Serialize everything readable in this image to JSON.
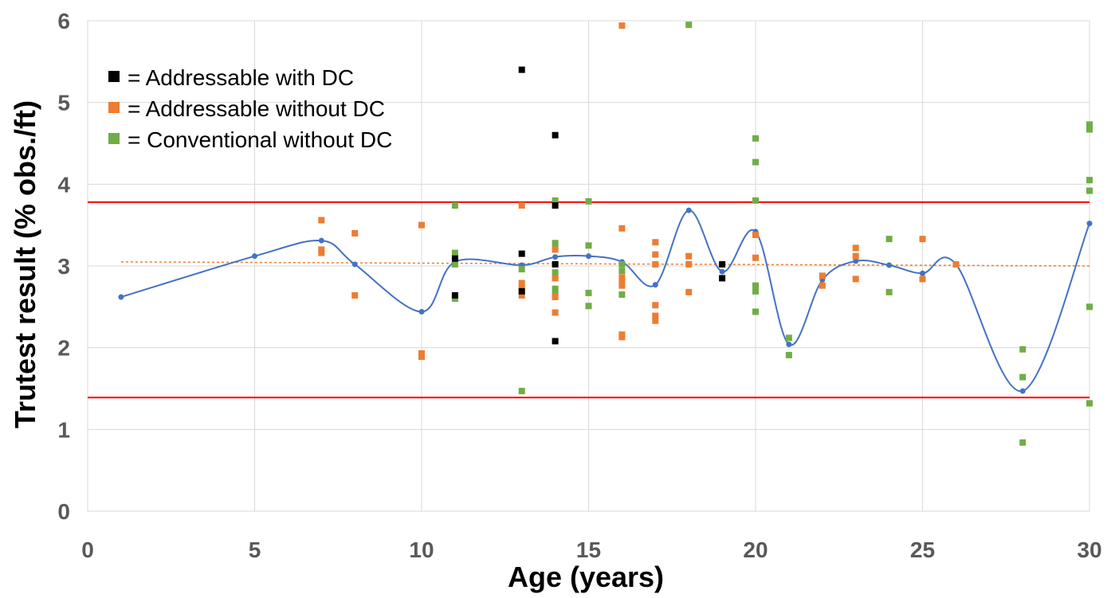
{
  "chart_data": {
    "type": "scatter",
    "title": "",
    "xlabel": "Age (years)",
    "ylabel": "Trutest result (% obs./ft)",
    "xlim": [
      0,
      30
    ],
    "ylim": [
      0,
      6
    ],
    "x_ticks": [
      0,
      5,
      10,
      15,
      20,
      25,
      30
    ],
    "y_ticks": [
      0,
      1,
      2,
      3,
      4,
      5,
      6
    ],
    "grid": true,
    "legend_position": "top-left",
    "legend": [
      {
        "series": "addressable_with_dc",
        "label": "= Addressable  with DC",
        "color": "#000000"
      },
      {
        "series": "addressable_without_dc",
        "label": "= Addressable  without DC",
        "color": "#ED7D31"
      },
      {
        "series": "conventional_without_dc",
        "label": "= Conventional  without DC",
        "color": "#70AD47"
      }
    ],
    "series": [
      {
        "key": "addressable_with_dc",
        "name": "Addressable with DC",
        "color": "#000000",
        "marker": "square",
        "points": [
          [
            11,
            3.09
          ],
          [
            11,
            2.64
          ],
          [
            13,
            5.4
          ],
          [
            13,
            3.15
          ],
          [
            13,
            2.69
          ],
          [
            14,
            4.6
          ],
          [
            14,
            3.74
          ],
          [
            14,
            3.02
          ],
          [
            14,
            2.08
          ],
          [
            19,
            3.02
          ],
          [
            19,
            2.85
          ]
        ]
      },
      {
        "key": "addressable_without_dc",
        "name": "Addressable without DC",
        "color": "#ED7D31",
        "marker": "square",
        "points": [
          [
            7,
            3.56
          ],
          [
            7,
            3.2
          ],
          [
            7,
            3.16
          ],
          [
            8,
            3.4
          ],
          [
            8,
            2.64
          ],
          [
            10,
            3.5
          ],
          [
            10,
            1.93
          ],
          [
            10,
            1.89
          ],
          [
            13,
            3.74
          ],
          [
            13,
            2.79
          ],
          [
            13,
            2.72
          ],
          [
            13,
            2.64
          ],
          [
            14,
            3.2
          ],
          [
            14,
            2.85
          ],
          [
            14,
            2.62
          ],
          [
            14,
            2.43
          ],
          [
            16,
            5.94
          ],
          [
            16,
            3.46
          ],
          [
            16,
            2.86
          ],
          [
            16,
            2.8
          ],
          [
            16,
            2.76
          ],
          [
            16,
            2.16
          ],
          [
            16,
            2.13
          ],
          [
            17,
            3.29
          ],
          [
            17,
            3.14
          ],
          [
            17,
            3.02
          ],
          [
            17,
            2.52
          ],
          [
            17,
            2.39
          ],
          [
            17,
            2.33
          ],
          [
            18,
            3.12
          ],
          [
            18,
            3.02
          ],
          [
            18,
            2.68
          ],
          [
            20,
            3.38
          ],
          [
            20,
            3.1
          ],
          [
            22,
            2.88
          ],
          [
            22,
            2.76
          ],
          [
            23,
            3.22
          ],
          [
            23,
            3.12
          ],
          [
            23,
            2.84
          ],
          [
            25,
            3.33
          ],
          [
            25,
            2.84
          ],
          [
            26,
            3.02
          ]
        ]
      },
      {
        "key": "conventional_without_dc",
        "name": "Conventional without DC",
        "color": "#70AD47",
        "marker": "square",
        "points": [
          [
            11,
            3.74
          ],
          [
            11,
            3.16
          ],
          [
            11,
            3.02
          ],
          [
            11,
            2.6
          ],
          [
            13,
            2.96
          ],
          [
            13,
            1.47
          ],
          [
            14,
            3.8
          ],
          [
            14,
            3.28
          ],
          [
            14,
            3.22
          ],
          [
            14,
            2.92
          ],
          [
            14,
            2.87
          ],
          [
            14,
            2.72
          ],
          [
            14,
            2.68
          ],
          [
            15,
            3.79
          ],
          [
            15,
            3.25
          ],
          [
            15,
            2.67
          ],
          [
            15,
            2.51
          ],
          [
            16,
            3.02
          ],
          [
            16,
            2.94
          ],
          [
            16,
            2.65
          ],
          [
            18,
            5.95
          ],
          [
            20,
            4.56
          ],
          [
            20,
            4.27
          ],
          [
            20,
            3.8
          ],
          [
            20,
            2.76
          ],
          [
            20,
            2.72
          ],
          [
            20,
            2.69
          ],
          [
            20,
            2.44
          ],
          [
            21,
            2.12
          ],
          [
            21,
            1.91
          ],
          [
            24,
            3.33
          ],
          [
            24,
            2.68
          ],
          [
            28,
            1.98
          ],
          [
            28,
            1.64
          ],
          [
            28,
            0.84
          ],
          [
            30,
            4.73
          ],
          [
            30,
            4.67
          ],
          [
            30,
            4.05
          ],
          [
            30,
            3.92
          ],
          [
            30,
            2.5
          ],
          [
            30,
            1.32
          ]
        ]
      }
    ],
    "mean_curve": {
      "name": "Mean",
      "color": "#4472C4",
      "smooth": true,
      "points": [
        [
          1,
          2.62
        ],
        [
          5,
          3.12
        ],
        [
          7,
          3.31
        ],
        [
          8,
          3.02
        ],
        [
          10,
          2.44
        ],
        [
          11,
          3.05
        ],
        [
          13,
          3.01
        ],
        [
          14,
          3.11
        ],
        [
          15,
          3.12
        ],
        [
          16,
          3.05
        ],
        [
          17,
          2.77
        ],
        [
          18,
          3.68
        ],
        [
          19,
          2.93
        ],
        [
          20,
          3.42
        ],
        [
          21,
          2.04
        ],
        [
          22,
          2.83
        ],
        [
          23,
          3.06
        ],
        [
          24,
          3.01
        ],
        [
          25,
          2.91
        ],
        [
          26,
          3.02
        ],
        [
          28,
          1.47
        ],
        [
          30,
          3.52
        ]
      ]
    },
    "reference_lines": [
      {
        "name": "upper limit",
        "y": 3.78,
        "color": "#FF0000"
      },
      {
        "name": "lower limit",
        "y": 1.39,
        "color": "#FF0000"
      }
    ],
    "trend_line": {
      "name": "linear trend",
      "color": "#ED7D31",
      "dashed": true,
      "points": [
        [
          1,
          3.05
        ],
        [
          30,
          3.0
        ]
      ]
    }
  }
}
